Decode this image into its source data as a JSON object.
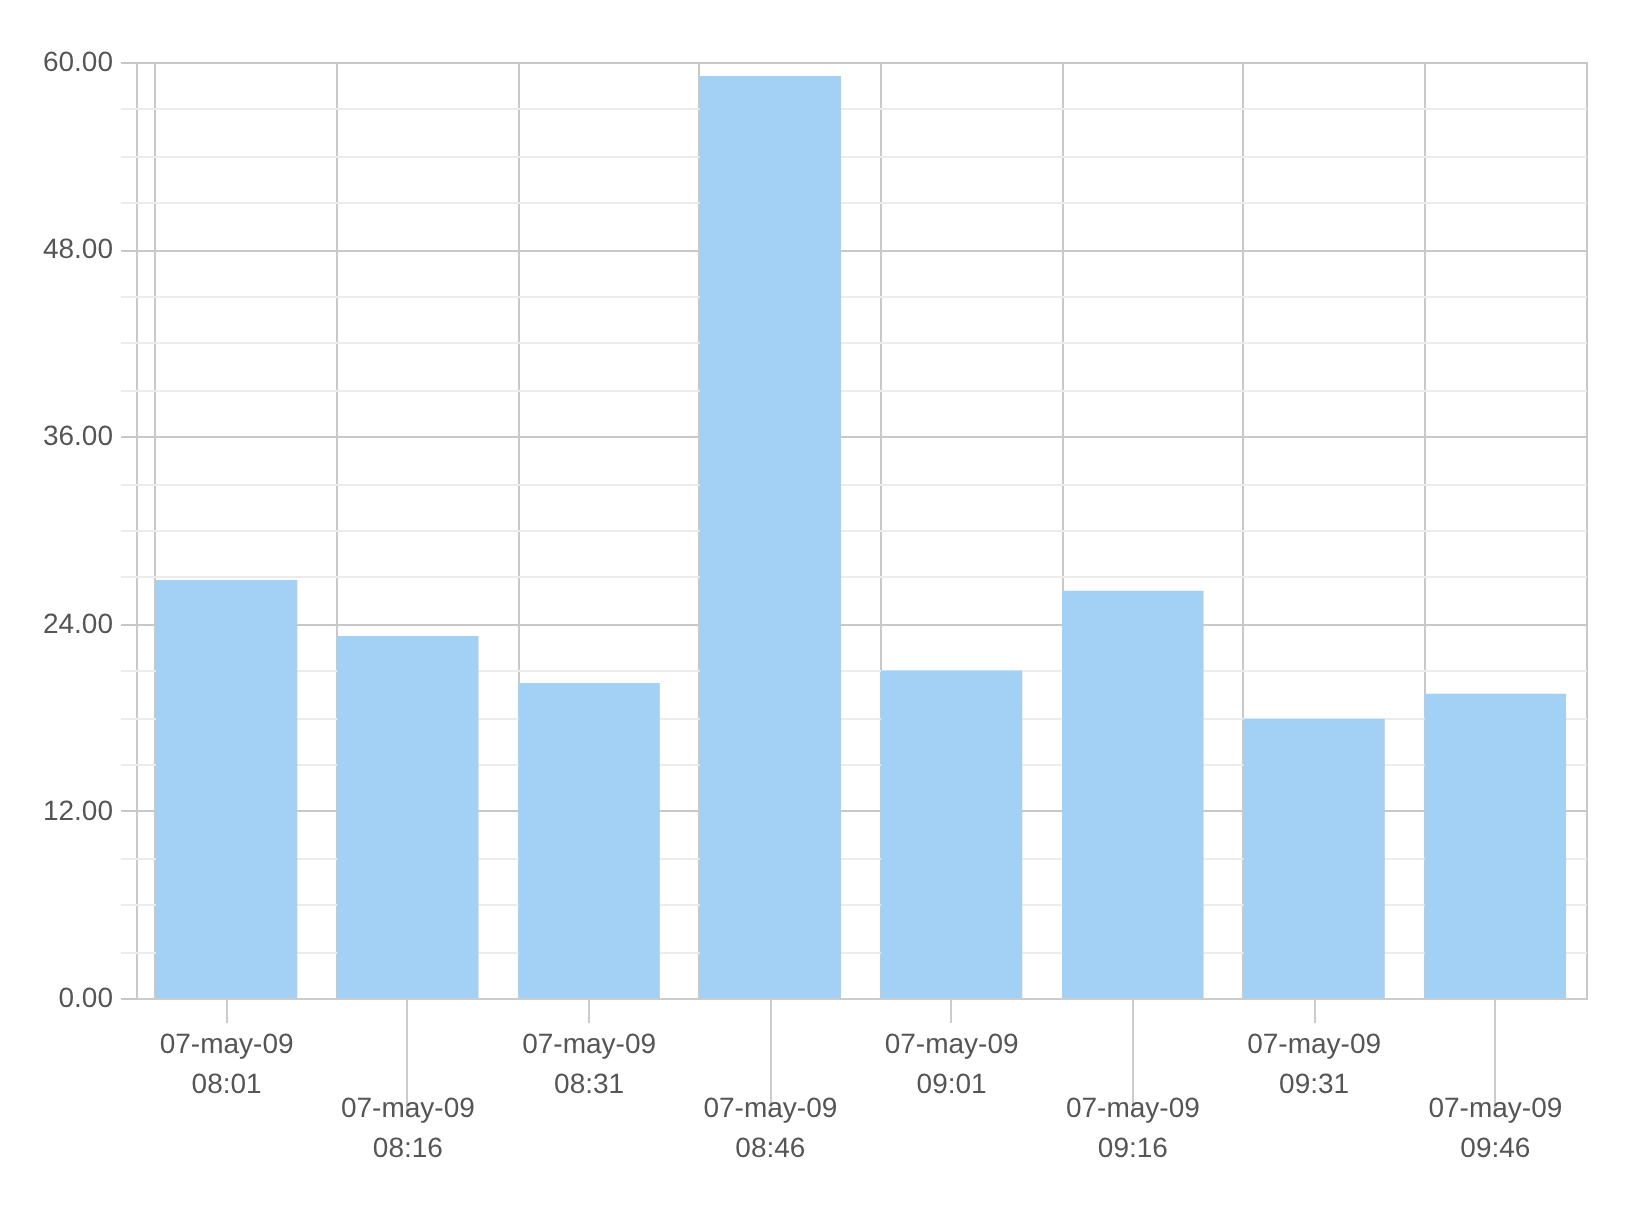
{
  "chart_data": {
    "type": "bar",
    "categories": [
      "07-may-09\n08:01",
      "07-may-09\n08:16",
      "07-may-09\n08:31",
      "07-may-09\n08:46",
      "07-may-09\n09:01",
      "07-may-09\n09:16",
      "07-may-09\n09:31",
      "07-may-09\n09:46"
    ],
    "values": [
      26.8,
      23.2,
      20.2,
      59.1,
      21.0,
      26.1,
      17.9,
      19.5
    ],
    "color": "#a3d1f5",
    "ylim": [
      0,
      60
    ],
    "yticks": [
      {
        "value": 0,
        "label": "0.00"
      },
      {
        "value": 3,
        "label": null
      },
      {
        "value": 6,
        "label": null
      },
      {
        "value": 9,
        "label": null
      },
      {
        "value": 12,
        "label": "12.00"
      },
      {
        "value": 15,
        "label": null
      },
      {
        "value": 18,
        "label": null
      },
      {
        "value": 21,
        "label": null
      },
      {
        "value": 24,
        "label": "24.00"
      },
      {
        "value": 27,
        "label": null
      },
      {
        "value": 30,
        "label": null
      },
      {
        "value": 33,
        "label": null
      },
      {
        "value": 36,
        "label": "36.00"
      },
      {
        "value": 39,
        "label": null
      },
      {
        "value": 42,
        "label": null
      },
      {
        "value": 45,
        "label": null
      },
      {
        "value": 48,
        "label": "48.00"
      },
      {
        "value": 51,
        "label": null
      },
      {
        "value": 54,
        "label": null
      },
      {
        "value": 57,
        "label": null
      },
      {
        "value": 60,
        "label": "60.00"
      }
    ],
    "grid": true
  }
}
